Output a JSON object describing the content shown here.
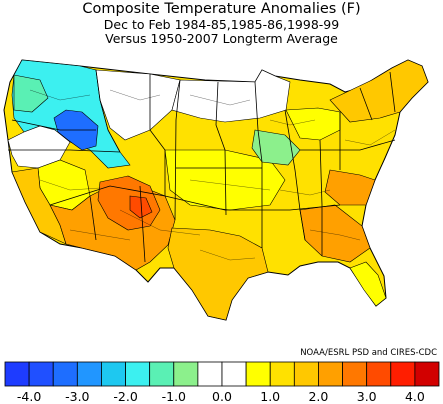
{
  "header": {
    "title": "Composite Temperature Anomalies (F)",
    "subtitle": "Dec to Feb  1984-85,1985-86,1998-99",
    "reference": "Versus 1950-2007 Longterm Average"
  },
  "credit": "NOAA/ESRL PSD and CIRES-CDC",
  "legend": {
    "colors": [
      "#1e3cff",
      "#2050ff",
      "#1e6eff",
      "#2196ff",
      "#1ec8f0",
      "#3cf0f0",
      "#5af0b4",
      "#8cf08c",
      "#ffffff",
      "#ffffff",
      "#ffff00",
      "#ffe100",
      "#ffc800",
      "#ffa000",
      "#ff7800",
      "#ff4b00",
      "#ff1e00",
      "#d20000"
    ],
    "tick_labels": [
      "-4.0",
      "-3.0",
      "-2.0",
      "-1.0",
      "0.0",
      "1.0",
      "2.0",
      "3.0",
      "4.0"
    ]
  },
  "chart_data": {
    "type": "choropleth",
    "title": "Composite Temperature Anomalies (F)",
    "units": "F",
    "scale_range": [
      -4.5,
      4.5
    ],
    "scale_step": 0.5
  }
}
